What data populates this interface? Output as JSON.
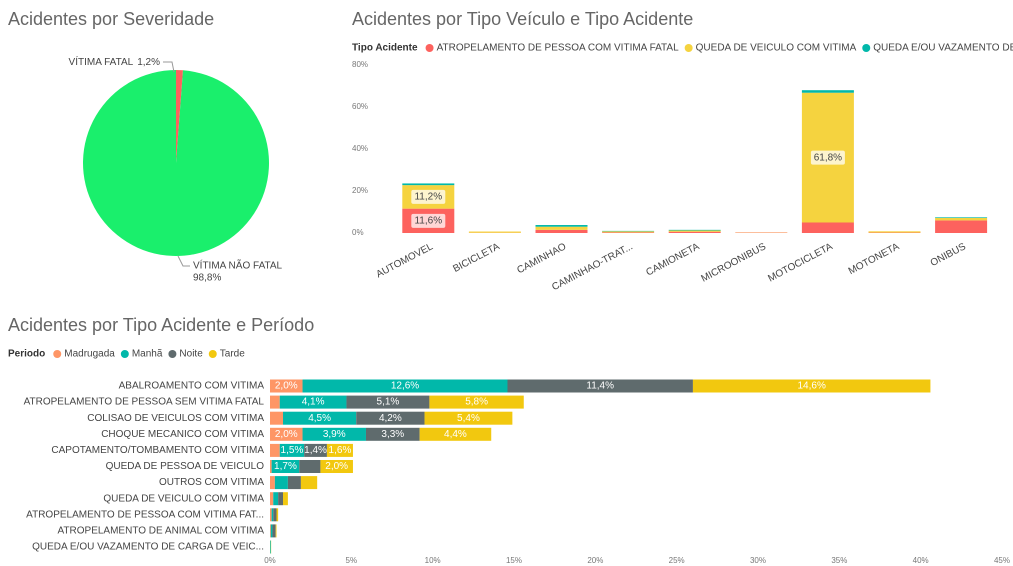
{
  "chart_data": [
    {
      "type": "pie",
      "title": "Acidentes por Severidade",
      "categories": [
        "VÍTIMA FATAL",
        "VÍTIMA NÃO FATAL"
      ],
      "values": [
        1.2,
        98.8
      ],
      "value_labels": [
        "1,2%",
        "98,8%"
      ],
      "colors": [
        "#fd625e",
        "#1aef6c"
      ]
    },
    {
      "type": "stacked-bar",
      "title": "Acidentes por Tipo Veículo e Tipo Acidente",
      "legend_title": "Tipo Acidente",
      "categories": [
        "AUTOMOVEL",
        "BICICLETA",
        "CAMINHAO",
        "CAMINHAO-TRAT...",
        "CAMIONETA",
        "MICROONIBUS",
        "MOTOCICLETA",
        "MOTONETA",
        "ONIBUS"
      ],
      "series": [
        {
          "name": "ATROPELAMENTO DE PESSOA COM VITIMA FATAL",
          "color": "#fd625e",
          "values": [
            11.6,
            0.1,
            1.5,
            0.3,
            0.6,
            0.2,
            5.0,
            0.2,
            6.0
          ],
          "value_labels": [
            "11,6%",
            null,
            null,
            null,
            null,
            null,
            null,
            null,
            null
          ]
        },
        {
          "name": "QUEDA DE VEICULO COM VITIMA",
          "color": "#f5d33f",
          "values": [
            11.2,
            0.6,
            1.5,
            0.5,
            0.6,
            0.1,
            61.8,
            0.6,
            1.2
          ],
          "value_labels": [
            "11,2%",
            null,
            null,
            null,
            null,
            null,
            "61,8%",
            null,
            null
          ]
        },
        {
          "name": "QUEDA E/OU VAZAMENTO DE ...",
          "color": "#01b8aa",
          "values": [
            0.8,
            0,
            0.8,
            0.2,
            0.3,
            0,
            1.2,
            0,
            0.3
          ],
          "value_labels": [
            null,
            null,
            null,
            null,
            null,
            null,
            null,
            null,
            null
          ]
        }
      ],
      "ylim": [
        0,
        80
      ],
      "yticks": [
        {
          "value": 0,
          "label": "0%"
        },
        {
          "value": 20,
          "label": "20%"
        },
        {
          "value": 40,
          "label": "40%"
        },
        {
          "value": 60,
          "label": "60%"
        },
        {
          "value": 80,
          "label": "80%"
        }
      ]
    },
    {
      "type": "stacked-barh",
      "title": "Acidentes por Tipo Acidente e Período",
      "legend_title": "Periodo",
      "categories": [
        "ABALROAMENTO COM VITIMA",
        "ATROPELAMENTO DE PESSOA SEM VITIMA FATAL",
        "COLISAO DE VEICULOS COM VITIMA",
        "CHOQUE MECANICO COM VITIMA",
        "CAPOTAMENTO/TOMBAMENTO COM VITIMA",
        "QUEDA DE PESSOA DE VEICULO",
        "OUTROS COM VITIMA",
        "QUEDA DE VEICULO COM VITIMA",
        "ATROPELAMENTO DE PESSOA COM VITIMA FAT...",
        "ATROPELAMENTO DE ANIMAL COM VITIMA",
        "QUEDA E/OU VAZAMENTO DE CARGA DE VEIC..."
      ],
      "series": [
        {
          "name": "Madrugada",
          "color": "#fe9666",
          "values": [
            2.0,
            0.6,
            0.8,
            2.0,
            0.6,
            0.1,
            0.3,
            0.2,
            0.1,
            0.05,
            0
          ],
          "value_labels": [
            "2,0%",
            null,
            null,
            "2,0%",
            null,
            null,
            null,
            null,
            null,
            null,
            null
          ]
        },
        {
          "name": "Manhã",
          "color": "#01b8aa",
          "values": [
            12.6,
            4.1,
            4.5,
            3.9,
            1.5,
            1.7,
            0.8,
            0.3,
            0.1,
            0.1,
            0.05
          ],
          "value_labels": [
            "12,6%",
            "4,1%",
            "4,5%",
            "3,9%",
            "1,5%",
            "1,7%",
            null,
            null,
            null,
            null,
            null
          ]
        },
        {
          "name": "Noite",
          "color": "#5f6b6d",
          "values": [
            11.4,
            5.1,
            4.2,
            3.3,
            1.4,
            1.3,
            0.8,
            0.3,
            0.2,
            0.2,
            0
          ],
          "value_labels": [
            "11,4%",
            "5,1%",
            "4,2%",
            "3,3%",
            "1,4%",
            null,
            null,
            null,
            null,
            null,
            null
          ]
        },
        {
          "name": "Tarde",
          "color": "#f2c80f",
          "values": [
            14.6,
            5.8,
            5.4,
            4.4,
            1.6,
            2.0,
            1.0,
            0.3,
            0.1,
            0.05,
            0.02
          ],
          "value_labels": [
            "14,6%",
            "5,8%",
            "5,4%",
            "4,4%",
            "1,6%",
            "2,0%",
            null,
            null,
            null,
            null,
            null
          ]
        }
      ],
      "xlim": [
        0,
        45
      ],
      "xticks": [
        {
          "value": 0,
          "label": "0%"
        },
        {
          "value": 5,
          "label": "5%"
        },
        {
          "value": 10,
          "label": "10%"
        },
        {
          "value": 15,
          "label": "15%"
        },
        {
          "value": 20,
          "label": "20%"
        },
        {
          "value": 25,
          "label": "25%"
        },
        {
          "value": 30,
          "label": "30%"
        },
        {
          "value": 35,
          "label": "35%"
        },
        {
          "value": 40,
          "label": "40%"
        },
        {
          "value": 45,
          "label": "45%"
        }
      ]
    }
  ]
}
